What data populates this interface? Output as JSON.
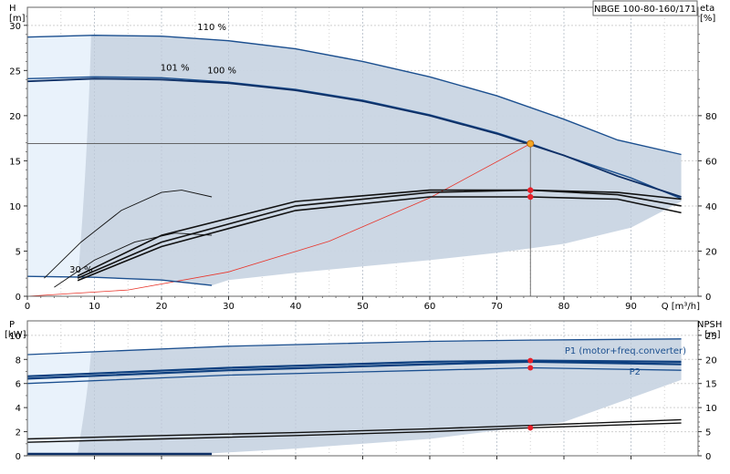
{
  "chart_data": [
    {
      "type": "line",
      "title": "NBGE 100-80-160/171",
      "x_unit": "Q [m³/h]",
      "x_ticks": [
        0,
        10,
        20,
        30,
        40,
        50,
        60,
        70,
        80,
        90
      ],
      "xlim": [
        0,
        100
      ],
      "left_axis": {
        "name": "H",
        "unit": "[m]",
        "ticks": [
          0,
          5,
          10,
          15,
          20,
          25,
          30
        ],
        "ylim": [
          0,
          32
        ]
      },
      "right_axis": {
        "name": "eta",
        "unit": "[%]",
        "ticks": [
          0,
          20,
          40,
          60,
          80
        ],
        "ylim": [
          0,
          128
        ]
      },
      "curve_labels": [
        "110 %",
        "101 %",
        "100 %",
        "30 %"
      ],
      "grid": true,
      "head_curves": [
        {
          "name": "110 %",
          "x": [
            0,
            10,
            20,
            30,
            40,
            50,
            60,
            70,
            80,
            88,
            97.5
          ],
          "y": [
            28.7,
            28.9,
            28.8,
            28.3,
            27.4,
            26.0,
            24.3,
            22.2,
            19.6,
            17.3,
            15.7
          ]
        },
        {
          "name": "101 %",
          "x": [
            0,
            10,
            20,
            30,
            40,
            50,
            60,
            70,
            75,
            80,
            90,
            97.5
          ],
          "y": [
            24.1,
            24.3,
            24.2,
            23.7,
            22.9,
            21.7,
            20.1,
            18.1,
            16.9,
            15.6,
            13.1,
            10.8
          ]
        },
        {
          "name": "100 %",
          "x": [
            0,
            10,
            20,
            30,
            40,
            50,
            60,
            70,
            75,
            80,
            88,
            97.5
          ],
          "y": [
            23.8,
            24.1,
            24.0,
            23.6,
            22.8,
            21.6,
            20.0,
            18.0,
            16.8,
            15.6,
            13.3,
            11.0
          ]
        },
        {
          "name": "30 %",
          "x": [
            0,
            10,
            20,
            27.5
          ],
          "y": [
            2.2,
            2.1,
            1.8,
            1.2
          ]
        }
      ],
      "eta_curves": [
        {
          "name": "30 %",
          "x": [
            2.5,
            8,
            14,
            20,
            23,
            27.5
          ],
          "y": [
            8,
            24,
            38,
            46,
            47,
            44
          ]
        },
        {
          "name": "30 %",
          "x": [
            4,
            10,
            16,
            22,
            27.5
          ],
          "y": [
            4,
            16,
            24,
            28,
            27
          ]
        },
        {
          "name": "100 %",
          "x": [
            7.5,
            20,
            40,
            60,
            75,
            88,
            97.5
          ],
          "y": [
            7,
            22,
            38,
            44,
            44,
            43,
            37
          ]
        },
        {
          "name": "101 %",
          "x": [
            7.5,
            20,
            40,
            60,
            75,
            88,
            97.5
          ],
          "y": [
            8,
            24,
            40,
            46,
            47,
            45,
            40
          ]
        },
        {
          "name": "110 %",
          "x": [
            7.5,
            20,
            40,
            60,
            75,
            88,
            97.5
          ],
          "y": [
            9,
            27,
            42,
            47,
            47,
            46,
            43
          ]
        }
      ],
      "system_curve": {
        "x": [
          0,
          15,
          30,
          45,
          60,
          75
        ],
        "y": [
          0,
          0.7,
          2.7,
          6.1,
          10.9,
          16.9
        ]
      },
      "duty_point": {
        "Q": 75,
        "H": 16.9,
        "eta": [
          47,
          44
        ]
      }
    },
    {
      "type": "line",
      "x_unit": "Q [m³/h]",
      "xlim": [
        0,
        100
      ],
      "left_axis": {
        "name": "P",
        "unit": "[kW]",
        "ticks": [
          0,
          2,
          4,
          6,
          8,
          10
        ],
        "ylim": [
          0,
          11.2
        ]
      },
      "right_axis": {
        "name": "NPSH",
        "unit": "[m]",
        "ticks": [
          0,
          5,
          10,
          15,
          20,
          25
        ],
        "ylim": [
          0,
          28
        ]
      },
      "series_labels": [
        "P1 (motor+freq.converter)",
        "P2"
      ],
      "grid": true,
      "power_curves": [
        {
          "name": "P1 (motor+freq.converter)",
          "x": [
            0,
            30,
            60,
            75,
            97.5
          ],
          "y": [
            8.4,
            9.1,
            9.5,
            9.6,
            9.7
          ]
        },
        {
          "name": "P1 (motor+freq.converter)",
          "x": [
            0,
            30,
            60,
            75,
            97.5
          ],
          "y": [
            6.6,
            7.3,
            7.8,
            7.9,
            7.8
          ]
        },
        {
          "name": "P2",
          "x": [
            0,
            30,
            60,
            75,
            97.5
          ],
          "y": [
            6.4,
            7.1,
            7.6,
            7.8,
            7.6
          ]
        },
        {
          "name": "P2",
          "x": [
            0,
            30,
            60,
            75,
            97.5
          ],
          "y": [
            6.0,
            6.7,
            7.1,
            7.3,
            7.1
          ]
        }
      ],
      "npsh_curves": [
        {
          "x": [
            0,
            20,
            40,
            60,
            75,
            97.5
          ],
          "y": [
            3.5,
            4.2,
            4.8,
            5.6,
            6.3,
            7.5
          ]
        },
        {
          "x": [
            0,
            20,
            40,
            60,
            75,
            97.5
          ],
          "y": [
            2.8,
            3.5,
            4.2,
            5.0,
            5.8,
            6.8
          ]
        }
      ],
      "low_speed_curve": {
        "x": [
          0,
          27.5
        ],
        "y": [
          0.15,
          0.15
        ]
      },
      "duty_points": {
        "Q": 75,
        "P": [
          7.9,
          7.3
        ],
        "NPSH": 5.8
      }
    }
  ]
}
